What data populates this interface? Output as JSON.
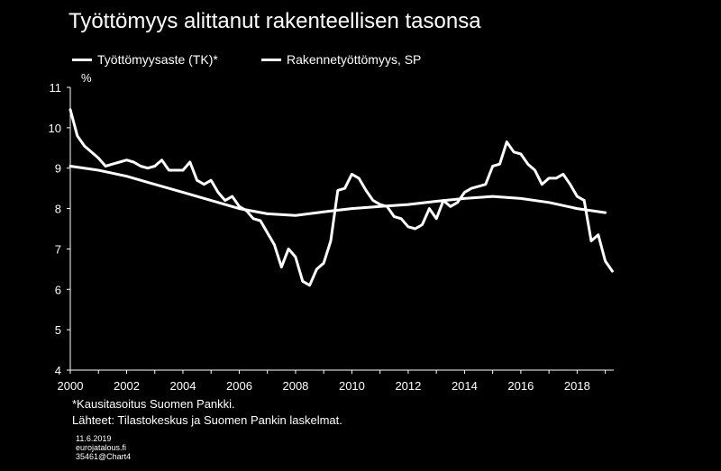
{
  "chart_data": {
    "type": "line",
    "title": "Työttömyys alittanut rakenteellisen tasonsa",
    "ylabel": "%",
    "ylim": [
      4,
      11
    ],
    "xlim": [
      2000,
      2019.3
    ],
    "yticks": [
      "4",
      "5",
      "6",
      "7",
      "8",
      "9",
      "10",
      "11"
    ],
    "xticks": [
      "2000",
      "2002",
      "2004",
      "2006",
      "2008",
      "2010",
      "2012",
      "2014",
      "2016",
      "2018"
    ],
    "grid": false,
    "legend_position": "top",
    "series": [
      {
        "name": "Työttömyysaste (TK)*",
        "color": "#ffffff",
        "points": [
          [
            2000.0,
            10.45
          ],
          [
            2000.25,
            9.8
          ],
          [
            2000.5,
            9.55
          ],
          [
            2000.75,
            9.4
          ],
          [
            2001.0,
            9.25
          ],
          [
            2001.25,
            9.05
          ],
          [
            2001.5,
            9.1
          ],
          [
            2001.75,
            9.15
          ],
          [
            2002.0,
            9.2
          ],
          [
            2002.25,
            9.15
          ],
          [
            2002.5,
            9.05
          ],
          [
            2002.75,
            9.0
          ],
          [
            2003.0,
            9.05
          ],
          [
            2003.25,
            9.2
          ],
          [
            2003.5,
            8.95
          ],
          [
            2003.75,
            8.95
          ],
          [
            2004.0,
            8.95
          ],
          [
            2004.25,
            9.15
          ],
          [
            2004.5,
            8.7
          ],
          [
            2004.75,
            8.6
          ],
          [
            2005.0,
            8.7
          ],
          [
            2005.25,
            8.4
          ],
          [
            2005.5,
            8.2
          ],
          [
            2005.75,
            8.3
          ],
          [
            2006.0,
            8.05
          ],
          [
            2006.25,
            7.95
          ],
          [
            2006.5,
            7.75
          ],
          [
            2006.75,
            7.7
          ],
          [
            2007.0,
            7.4
          ],
          [
            2007.25,
            7.1
          ],
          [
            2007.5,
            6.55
          ],
          [
            2007.75,
            7.0
          ],
          [
            2008.0,
            6.8
          ],
          [
            2008.25,
            6.2
          ],
          [
            2008.5,
            6.1
          ],
          [
            2008.75,
            6.5
          ],
          [
            2009.0,
            6.65
          ],
          [
            2009.25,
            7.2
          ],
          [
            2009.5,
            8.45
          ],
          [
            2009.75,
            8.5
          ],
          [
            2010.0,
            8.85
          ],
          [
            2010.25,
            8.75
          ],
          [
            2010.5,
            8.45
          ],
          [
            2010.75,
            8.2
          ],
          [
            2011.0,
            8.1
          ],
          [
            2011.25,
            8.05
          ],
          [
            2011.5,
            7.8
          ],
          [
            2011.75,
            7.75
          ],
          [
            2012.0,
            7.55
          ],
          [
            2012.25,
            7.5
          ],
          [
            2012.5,
            7.6
          ],
          [
            2012.75,
            8.0
          ],
          [
            2013.0,
            7.75
          ],
          [
            2013.25,
            8.2
          ],
          [
            2013.5,
            8.05
          ],
          [
            2013.75,
            8.15
          ],
          [
            2014.0,
            8.4
          ],
          [
            2014.25,
            8.5
          ],
          [
            2014.5,
            8.55
          ],
          [
            2014.75,
            8.6
          ],
          [
            2015.0,
            9.05
          ],
          [
            2015.25,
            9.1
          ],
          [
            2015.5,
            9.65
          ],
          [
            2015.75,
            9.4
          ],
          [
            2016.0,
            9.35
          ],
          [
            2016.25,
            9.1
          ],
          [
            2016.5,
            8.95
          ],
          [
            2016.75,
            8.6
          ],
          [
            2017.0,
            8.75
          ],
          [
            2017.25,
            8.75
          ],
          [
            2017.5,
            8.85
          ],
          [
            2017.75,
            8.6
          ],
          [
            2018.0,
            8.3
          ],
          [
            2018.25,
            8.2
          ],
          [
            2018.5,
            7.2
          ],
          [
            2018.75,
            7.35
          ],
          [
            2019.0,
            6.7
          ],
          [
            2019.25,
            6.45
          ]
        ]
      },
      {
        "name": "Rakennetyöttömyys, SP",
        "color": "#ffffff",
        "points": [
          [
            2000.0,
            9.05
          ],
          [
            2001.0,
            8.95
          ],
          [
            2002.0,
            8.8
          ],
          [
            2003.0,
            8.6
          ],
          [
            2004.0,
            8.4
          ],
          [
            2005.0,
            8.2
          ],
          [
            2006.0,
            8.0
          ],
          [
            2007.0,
            7.87
          ],
          [
            2008.0,
            7.83
          ],
          [
            2009.0,
            7.92
          ],
          [
            2010.0,
            8.0
          ],
          [
            2011.0,
            8.05
          ],
          [
            2012.0,
            8.1
          ],
          [
            2013.0,
            8.18
          ],
          [
            2014.0,
            8.25
          ],
          [
            2015.0,
            8.3
          ],
          [
            2016.0,
            8.25
          ],
          [
            2017.0,
            8.15
          ],
          [
            2018.0,
            8.0
          ],
          [
            2019.0,
            7.9
          ]
        ]
      }
    ],
    "footnote": "*Kausitasoitus Suomen Pankki.",
    "source": "Lähteet: Tilastokeskus ja Suomen Pankin laskelmat.",
    "meta": [
      "11.6.2019",
      "eurojatalous.fi",
      "35461@Chart4"
    ]
  }
}
